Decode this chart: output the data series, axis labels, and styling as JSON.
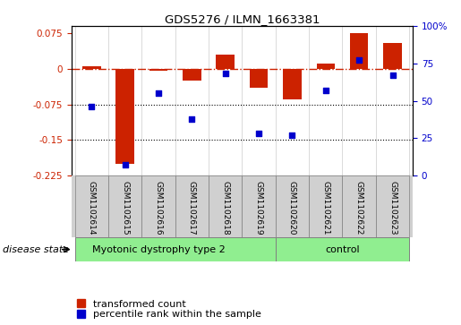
{
  "title": "GDS5276 / ILMN_1663381",
  "samples": [
    "GSM1102614",
    "GSM1102615",
    "GSM1102616",
    "GSM1102617",
    "GSM1102618",
    "GSM1102619",
    "GSM1102620",
    "GSM1102621",
    "GSM1102622",
    "GSM1102623"
  ],
  "red_values": [
    0.005,
    -0.2,
    -0.005,
    -0.025,
    0.03,
    -0.04,
    -0.065,
    0.01,
    0.075,
    0.055
  ],
  "blue_values": [
    46,
    7,
    55,
    38,
    68,
    28,
    27,
    57,
    77,
    67
  ],
  "disease_groups": [
    {
      "label": "Myotonic dystrophy type 2",
      "start": 0,
      "end": 6
    },
    {
      "label": "control",
      "start": 6,
      "end": 10
    }
  ],
  "ylim_left": [
    -0.225,
    0.09
  ],
  "ylim_right": [
    0,
    100
  ],
  "yticks_left": [
    -0.225,
    -0.15,
    -0.075,
    0.0,
    0.075
  ],
  "yticks_right": [
    0,
    25,
    50,
    75,
    100
  ],
  "bar_color": "#CC2200",
  "dot_color": "#0000CC",
  "hline_color": "#CC2200",
  "green_color": "#90EE90",
  "gray_color": "#d0d0d0",
  "disease_state_label": "disease state",
  "legend_red": "transformed count",
  "legend_blue": "percentile rank within the sample",
  "group_split": 6,
  "n_samples": 10
}
